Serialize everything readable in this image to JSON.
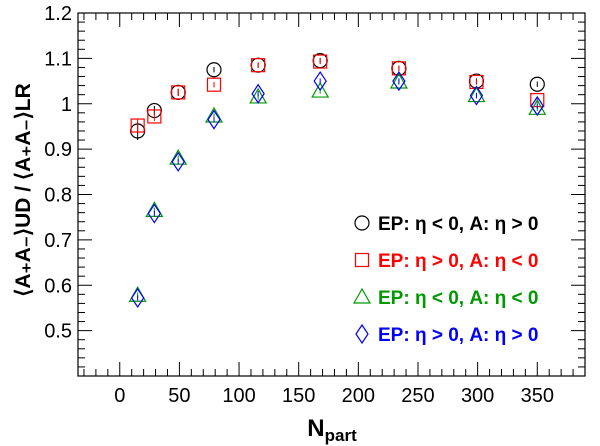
{
  "chart_data": {
    "type": "scatter",
    "title": "",
    "xlabel": "N",
    "xlabel_sub": "part",
    "ylabel": "⟨A₊A₋⟩UD / ⟨A₊A₋⟩LR",
    "xlim": [
      -35,
      390
    ],
    "ylim": [
      0.4,
      1.2
    ],
    "xticks": [
      0,
      50,
      100,
      150,
      200,
      250,
      300,
      350
    ],
    "yticks": [
      0.5,
      0.6,
      0.7,
      0.8,
      0.9,
      1.0,
      1.1,
      1.2
    ],
    "ytick_labels": [
      "0.5",
      "0.6",
      "0.7",
      "0.8",
      "0.9",
      "1",
      "1.1",
      "1.2"
    ],
    "grid": false,
    "legend_position": "right",
    "series": [
      {
        "name": "EP: η < 0, A: η > 0",
        "color": "#000000",
        "marker": "circle",
        "x": [
          15,
          29,
          49,
          79,
          116,
          168,
          234,
          299,
          350
        ],
        "y": [
          0.94,
          0.985,
          1.025,
          1.075,
          1.085,
          1.095,
          1.078,
          1.05,
          1.043
        ],
        "yerr": [
          0.02,
          0.01,
          0.008,
          0.006,
          0.006,
          0.006,
          0.006,
          0.006,
          0.006
        ]
      },
      {
        "name": "EP: η > 0, A: η < 0",
        "color": "#ff0000",
        "marker": "square",
        "x": [
          15,
          29,
          49,
          79,
          116,
          168,
          234,
          299,
          350
        ],
        "y": [
          0.952,
          0.972,
          1.025,
          1.042,
          1.085,
          1.093,
          1.078,
          1.048,
          1.008
        ],
        "yerr": [
          0.015,
          0.01,
          0.008,
          0.006,
          0.006,
          0.006,
          0.006,
          0.006,
          0.006
        ]
      },
      {
        "name": "EP: η < 0, A: η < 0",
        "color": "#009900",
        "marker": "triangle",
        "x": [
          15,
          29,
          49,
          79,
          116,
          168,
          234,
          299,
          350
        ],
        "y": [
          0.578,
          0.765,
          0.88,
          0.973,
          1.015,
          1.028,
          1.048,
          1.018,
          0.99
        ],
        "yerr": [
          0.006,
          0.006,
          0.006,
          0.006,
          0.006,
          0.006,
          0.006,
          0.006,
          0.006
        ]
      },
      {
        "name": "EP: η > 0, A: η > 0",
        "color": "#0000ff",
        "marker": "diamond",
        "x": [
          15,
          29,
          49,
          79,
          116,
          168,
          234,
          299,
          350
        ],
        "y": [
          0.572,
          0.758,
          0.872,
          0.965,
          1.022,
          1.05,
          1.05,
          1.018,
          0.995
        ],
        "yerr": [
          0.006,
          0.006,
          0.006,
          0.006,
          0.006,
          0.006,
          0.006,
          0.006,
          0.006
        ]
      }
    ]
  }
}
